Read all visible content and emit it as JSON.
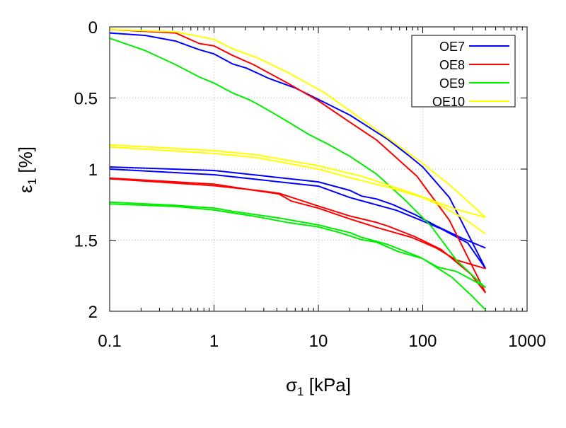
{
  "chart_data": {
    "type": "line",
    "title": "",
    "xlabel": {
      "symbol": "σ",
      "sub": "1",
      "unit": " [kPa]"
    },
    "ylabel": {
      "symbol": "ε",
      "sub": "1",
      "unit": " [%]"
    },
    "xscale": "log",
    "xlim": [
      0.1,
      1000
    ],
    "ylim": [
      0,
      2
    ],
    "y_inverted": true,
    "grid": true,
    "legend_position": "top-right",
    "xticks": [
      {
        "v": 0.1,
        "label": "0.1"
      },
      {
        "v": 1,
        "label": "1"
      },
      {
        "v": 10,
        "label": "10"
      },
      {
        "v": 100,
        "label": "100"
      },
      {
        "v": 1000,
        "label": "1000"
      }
    ],
    "yticks": [
      {
        "v": 0,
        "label": "0"
      },
      {
        "v": 0.5,
        "label": "0.5"
      },
      {
        "v": 1,
        "label": "1"
      },
      {
        "v": 1.5,
        "label": "1.5"
      },
      {
        "v": 2,
        "label": "2"
      }
    ],
    "series": [
      {
        "name": "OE7",
        "color": "#0000ff",
        "segments": [
          [
            [
              0.1,
              0.043
            ],
            [
              0.22,
              0.06
            ],
            [
              0.43,
              0.1
            ],
            [
              0.72,
              0.16
            ],
            [
              1,
              0.19
            ],
            [
              1.5,
              0.26
            ],
            [
              2.05,
              0.29
            ],
            [
              3.3,
              0.36
            ],
            [
              6,
              0.43
            ],
            [
              10,
              0.51
            ],
            [
              20,
              0.62
            ],
            [
              46,
              0.79
            ],
            [
              72,
              0.9
            ],
            [
              100,
              0.985
            ],
            [
              180,
              1.2
            ],
            [
              400,
              1.7
            ]
          ],
          [
            [
              0.1,
              1.0
            ],
            [
              1,
              1.04
            ],
            [
              10,
              1.12
            ],
            [
              20,
              1.2
            ],
            [
              56,
              1.29
            ],
            [
              100,
              1.365
            ],
            [
              150,
              1.42
            ],
            [
              270,
              1.52
            ],
            [
              400,
              1.7
            ]
          ],
          [
            [
              0.1,
              0.985
            ],
            [
              1,
              1.01
            ],
            [
              10,
              1.09
            ],
            [
              20,
              1.15
            ],
            [
              26,
              1.19
            ],
            [
              36,
              1.21
            ],
            [
              52,
              1.25
            ],
            [
              84,
              1.32
            ],
            [
              135,
              1.4
            ],
            [
              245,
              1.49
            ],
            [
              400,
              1.555
            ]
          ]
        ]
      },
      {
        "name": "OE8",
        "color": "#ff0000",
        "segments": [
          [
            [
              0.1,
              0.018
            ],
            [
              0.43,
              0.043
            ],
            [
              0.72,
              0.117
            ],
            [
              1,
              0.134
            ],
            [
              1.5,
              0.2
            ],
            [
              2.4,
              0.266
            ],
            [
              5.2,
              0.4
            ],
            [
              10,
              0.52
            ],
            [
              20,
              0.67
            ],
            [
              36,
              0.795
            ],
            [
              88,
              1.05
            ],
            [
              180,
              1.36
            ],
            [
              400,
              1.87
            ]
          ],
          [
            [
              0.1,
              1.063
            ],
            [
              1,
              1.106
            ],
            [
              2.2,
              1.145
            ],
            [
              4.2,
              1.175
            ],
            [
              5.5,
              1.225
            ],
            [
              10,
              1.275
            ],
            [
              20,
              1.35
            ],
            [
              36,
              1.41
            ],
            [
              78,
              1.48
            ],
            [
              135,
              1.555
            ],
            [
              210,
              1.64
            ],
            [
              400,
              1.7
            ]
          ],
          [
            [
              0.1,
              1.068
            ],
            [
              1,
              1.117
            ],
            [
              2.6,
              1.15
            ],
            [
              4.2,
              1.17
            ],
            [
              10,
              1.26
            ],
            [
              20,
              1.33
            ],
            [
              36,
              1.375
            ],
            [
              46,
              1.4
            ],
            [
              84,
              1.475
            ],
            [
              150,
              1.565
            ],
            [
              290,
              1.74
            ],
            [
              400,
              1.87
            ]
          ]
        ]
      },
      {
        "name": "OE9",
        "color": "#00ee00",
        "segments": [
          [
            [
              0.1,
              0.08
            ],
            [
              0.22,
              0.167
            ],
            [
              0.43,
              0.266
            ],
            [
              0.72,
              0.352
            ],
            [
              1,
              0.395
            ],
            [
              1.5,
              0.464
            ],
            [
              2.2,
              0.514
            ],
            [
              2.8,
              0.555
            ],
            [
              5.2,
              0.67
            ],
            [
              8,
              0.754
            ],
            [
              12,
              0.82
            ],
            [
              20,
              0.91
            ],
            [
              36,
              1.035
            ],
            [
              66,
              1.21
            ],
            [
              120,
              1.4
            ],
            [
              210,
              1.64
            ],
            [
              400,
              1.835
            ]
          ],
          [
            [
              0.1,
              1.233
            ],
            [
              0.43,
              1.255
            ],
            [
              1,
              1.274
            ],
            [
              1.6,
              1.3
            ],
            [
              4.2,
              1.344
            ],
            [
              10,
              1.393
            ],
            [
              20,
              1.447
            ],
            [
              26,
              1.48
            ],
            [
              46,
              1.53
            ],
            [
              94,
              1.62
            ],
            [
              140,
              1.69
            ],
            [
              210,
              1.72
            ],
            [
              400,
              1.83
            ]
          ],
          [
            [
              0.1,
              1.245
            ],
            [
              0.43,
              1.263
            ],
            [
              1,
              1.288
            ],
            [
              2.2,
              1.327
            ],
            [
              2.8,
              1.34
            ],
            [
              5.2,
              1.377
            ],
            [
              10,
              1.407
            ],
            [
              16,
              1.447
            ],
            [
              26,
              1.497
            ],
            [
              36,
              1.514
            ],
            [
              58,
              1.58
            ],
            [
              100,
              1.63
            ],
            [
              190,
              1.76
            ],
            [
              290,
              1.886
            ],
            [
              400,
              1.99
            ]
          ]
        ]
      },
      {
        "name": "OE10",
        "color": "#ffff00",
        "segments": [
          [
            [
              0.1,
              0.018
            ],
            [
              0.43,
              0.035
            ],
            [
              1,
              0.088
            ],
            [
              1.5,
              0.154
            ],
            [
              2.6,
              0.217
            ],
            [
              5.2,
              0.324
            ],
            [
              11.5,
              0.464
            ],
            [
              20,
              0.59
            ],
            [
              46,
              0.78
            ],
            [
              100,
              0.96
            ],
            [
              180,
              1.11
            ],
            [
              400,
              1.34
            ]
          ],
          [
            [
              0.1,
              0.83
            ],
            [
              1,
              0.87
            ],
            [
              2.6,
              0.9
            ],
            [
              10,
              0.977
            ],
            [
              26,
              1.05
            ],
            [
              66,
              1.15
            ],
            [
              120,
              1.217
            ],
            [
              210,
              1.283
            ],
            [
              400,
              1.34
            ]
          ],
          [
            [
              0.1,
              0.845
            ],
            [
              1,
              0.89
            ],
            [
              2.6,
              0.92
            ],
            [
              10,
              1.0
            ],
            [
              20,
              1.06
            ],
            [
              50,
              1.134
            ],
            [
              100,
              1.2
            ],
            [
              150,
              1.258
            ],
            [
              260,
              1.357
            ],
            [
              400,
              1.456
            ]
          ]
        ]
      }
    ]
  }
}
